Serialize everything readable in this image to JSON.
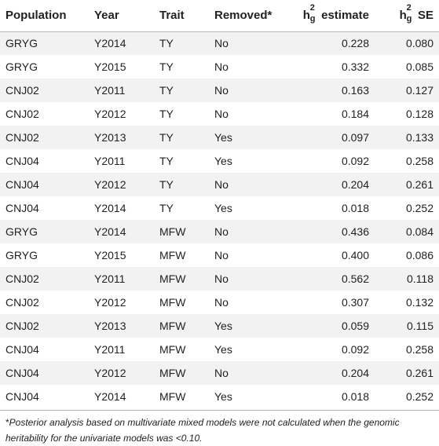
{
  "headers": {
    "population": "Population",
    "year": "Year",
    "trait": "Trait",
    "removed": "Removed*",
    "estimate_symbol": "h",
    "estimate_sup": "2",
    "estimate_sub": "g",
    "estimate_suffix": "estimate",
    "se_symbol": "h",
    "se_sup": "2",
    "se_sub": "g",
    "se_suffix": "SE"
  },
  "rows": [
    {
      "population": "GRYG",
      "year": "Y2014",
      "trait": "TY",
      "removed": "No",
      "estimate": "0.228",
      "se": "0.080"
    },
    {
      "population": "GRYG",
      "year": "Y2015",
      "trait": "TY",
      "removed": "No",
      "estimate": "0.332",
      "se": "0.085"
    },
    {
      "population": "CNJ02",
      "year": "Y2011",
      "trait": "TY",
      "removed": "No",
      "estimate": "0.163",
      "se": "0.127"
    },
    {
      "population": "CNJ02",
      "year": "Y2012",
      "trait": "TY",
      "removed": "No",
      "estimate": "0.184",
      "se": "0.128"
    },
    {
      "population": "CNJ02",
      "year": "Y2013",
      "trait": "TY",
      "removed": "Yes",
      "estimate": "0.097",
      "se": "0.133"
    },
    {
      "population": "CNJ04",
      "year": "Y2011",
      "trait": "TY",
      "removed": "Yes",
      "estimate": "0.092",
      "se": "0.258"
    },
    {
      "population": "CNJ04",
      "year": "Y2012",
      "trait": "TY",
      "removed": "No",
      "estimate": "0.204",
      "se": "0.261"
    },
    {
      "population": "CNJ04",
      "year": "Y2014",
      "trait": "TY",
      "removed": "Yes",
      "estimate": "0.018",
      "se": "0.252"
    },
    {
      "population": "GRYG",
      "year": "Y2014",
      "trait": "MFW",
      "removed": "No",
      "estimate": "0.436",
      "se": "0.084"
    },
    {
      "population": "GRYG",
      "year": "Y2015",
      "trait": "MFW",
      "removed": "No",
      "estimate": "0.400",
      "se": "0.086"
    },
    {
      "population": "CNJ02",
      "year": "Y2011",
      "trait": "MFW",
      "removed": "No",
      "estimate": "0.562",
      "se": "0.118"
    },
    {
      "population": "CNJ02",
      "year": "Y2012",
      "trait": "MFW",
      "removed": "No",
      "estimate": "0.307",
      "se": "0.132"
    },
    {
      "population": "CNJ02",
      "year": "Y2013",
      "trait": "MFW",
      "removed": "Yes",
      "estimate": "0.059",
      "se": "0.115"
    },
    {
      "population": "CNJ04",
      "year": "Y2011",
      "trait": "MFW",
      "removed": "Yes",
      "estimate": "0.092",
      "se": "0.258"
    },
    {
      "population": "CNJ04",
      "year": "Y2012",
      "trait": "MFW",
      "removed": "No",
      "estimate": "0.204",
      "se": "0.261"
    },
    {
      "population": "CNJ04",
      "year": "Y2014",
      "trait": "MFW",
      "removed": "Yes",
      "estimate": "0.018",
      "se": "0.252"
    }
  ],
  "footnote": {
    "marker": "*",
    "text": "Posterior analysis based on multivariate mixed models were not calculated when the genomic heritability for the univariate models was <0.10."
  },
  "colors": {
    "stripe": "#f2f2f2",
    "rule": "#b5b5b5",
    "text": "#222222"
  }
}
